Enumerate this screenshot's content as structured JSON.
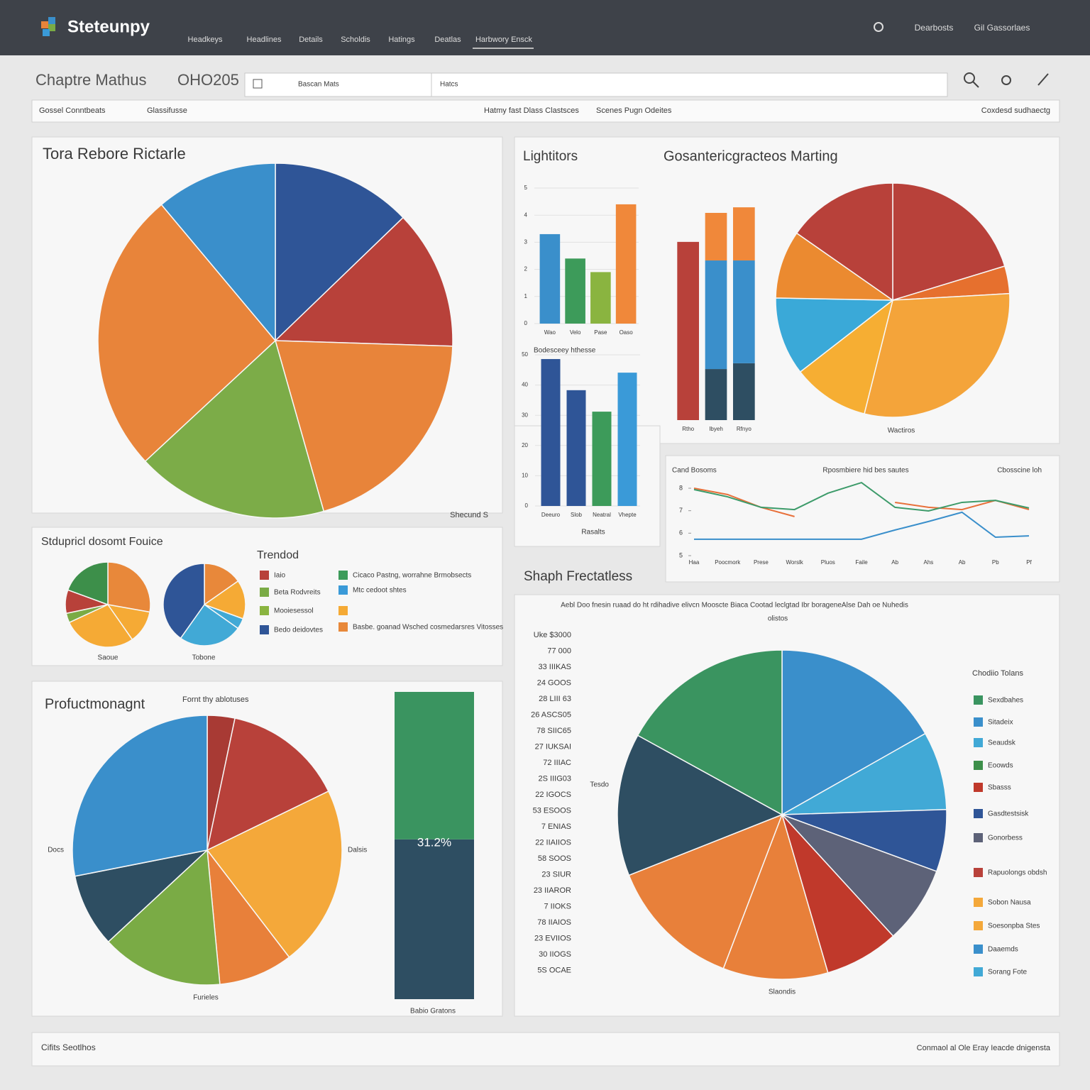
{
  "header": {
    "logo": "Steteunpy",
    "nav": [
      "Headkeys",
      "Headlines",
      "Details",
      "Scholdis",
      "Hatings",
      "Deatlas",
      "Harbwory Ensck"
    ],
    "links": [
      "Dearbosts",
      "Gil Gassorlaes"
    ]
  },
  "toolbar": {
    "title": "Chaptre Mathus",
    "code": "OHO205",
    "search": [
      "Bascan Mats",
      "Hatcs"
    ]
  },
  "filters": [
    "Gossel Conntbeats",
    "Glassifusse",
    "Hatmy fast Dlass Clastsces",
    "Scenes Pugn Odeites",
    "Coxdesd sudhaectg"
  ],
  "chart_data": [
    {
      "type": "pie",
      "title": "Tora Rebore Rictarle",
      "caption": "Shecund S",
      "values": [
        12.8,
        12.7,
        20.1,
        17.5,
        25.8,
        11.1
      ],
      "colors": [
        "#2f5597",
        "#b8413a",
        "#e8843a",
        "#7cac48",
        "#e8843a",
        "#3a8fcb"
      ]
    },
    {
      "type": "bar",
      "title": "Lightitors",
      "categories": [
        "Wao",
        "Velo",
        "Pase",
        "Oaso"
      ],
      "values": [
        3.3,
        2.4,
        1.9,
        4.4
      ],
      "colors": [
        "#3a8fcb",
        "#3d9b5a",
        "#8ab440",
        "#f0883a"
      ],
      "ylim": [
        0,
        5
      ],
      "yticks": [
        0,
        1,
        2,
        3,
        4,
        5
      ],
      "grid": true
    },
    {
      "type": "bar",
      "subtitle": "Bodesceey hthesse",
      "xlabel": "Rasalts",
      "categories": [
        "Deeuro",
        "Slob",
        "Neatral",
        "Vhepte"
      ],
      "values": [
        48.6,
        38.3,
        31.2,
        44.1
      ],
      "colors": [
        "#2f5597",
        "#2f5597",
        "#3d9b5a",
        "#3a9ad8"
      ],
      "ylim": [
        0,
        50
      ],
      "yticks": [
        0,
        10,
        20,
        30,
        40,
        50
      ],
      "grid": true
    },
    {
      "type": "bar",
      "title": "Gosantericgracteos Marting",
      "categories": [
        "Rtho",
        "Ibyeh",
        "Rfnyo"
      ],
      "ylim": [
        0,
        100
      ],
      "series": [
        {
          "color": "#b8413a",
          "values": [
            76.8,
            null,
            null
          ]
        },
        {
          "color": "#2e4e62",
          "values": [
            null,
            22,
            24.5
          ]
        },
        {
          "color": "#3a8fcb",
          "values": [
            null,
            46.8,
            44.3
          ]
        },
        {
          "color": "#f0883a",
          "values": [
            null,
            20.5,
            22.9
          ]
        }
      ]
    },
    {
      "type": "pie",
      "caption": "Wactiros",
      "values": [
        20.3,
        3.8,
        29.8,
        10.6,
        10.8,
        9.4,
        15.3
      ],
      "colors": [
        "#b8413a",
        "#e6702e",
        "#f4a43a",
        "#f6ae33",
        "#3aa9d8",
        "#eb8a30",
        "#b8413a"
      ]
    },
    {
      "type": "line",
      "annotations": [
        "Cand Bosoms",
        "Rposmbiere hid bes sautes",
        "Cbosscine loh"
      ],
      "categories": [
        "Haa",
        "Poocmork",
        "Prese",
        "Worslk",
        "Pluos",
        "Faile",
        "Ab",
        "Ahs",
        "Ab",
        "Pb",
        "Pf"
      ],
      "ylim": [
        5,
        8
      ],
      "yticks": [
        5,
        6,
        7,
        8
      ],
      "series": [
        {
          "color": "#e8703a",
          "values": [
            8.0,
            7.72,
            7.15,
            6.74,
            null,
            null,
            7.37,
            7.15,
            7.05,
            7.46,
            7.05
          ]
        },
        {
          "color": "#3d9b6a",
          "values": [
            7.94,
            7.62,
            7.15,
            7.05,
            7.78,
            8.25,
            7.15,
            6.99,
            7.37,
            7.46,
            7.12
          ]
        },
        {
          "color": "#3a8fcb",
          "values": [
            5.73,
            5.73,
            5.73,
            5.73,
            5.73,
            5.73,
            6.14,
            6.52,
            6.93,
            5.82,
            5.88
          ]
        }
      ]
    },
    {
      "type": "pie",
      "title": "Stdupricl dosomt Fouice",
      "caption": "Saoue",
      "values": [
        27.8,
        12.5,
        27.8,
        3.6,
        8.9,
        19.4
      ],
      "colors": [
        "#e8883a",
        "#f5aa35",
        "#f5aa35",
        "#7aab45",
        "#b8413a",
        "#3d8f4a"
      ]
    },
    {
      "type": "pie",
      "caption": "Tobone",
      "values": [
        15.3,
        15.3,
        4.2,
        25,
        40.2
      ],
      "colors": [
        "#e8883a",
        "#f5aa35",
        "#41a9d6",
        "#41a9d6",
        "#2f5597"
      ],
      "legend": {
        "title": "Trendod",
        "items": [
          {
            "name": "Iaio",
            "color": "#b8413a"
          },
          {
            "name": "Beta Rodvreits",
            "color": "#7aab45"
          },
          {
            "name": "Mooiesessol",
            "color": "#8ab440"
          },
          {
            "name": "Bedo deidovtes",
            "color": "#2f5597"
          },
          {
            "name": "Cicaco Pastng, worrahne Brmobsects",
            "color": "#3d9b5a"
          },
          {
            "name": "Mtc cedoot shtes",
            "color": "#3a9ad8"
          },
          {
            "color": "#f5aa35"
          },
          {
            "name": "Basbe. goanad Wsched cosmedarsres Vitosses",
            "color": "#e8883a"
          }
        ]
      }
    },
    {
      "type": "pie",
      "title": "Profuctmonagnt",
      "subtitle": "Fornt thy ablotuses",
      "caption": "Furieles",
      "annotations": [
        "Docs",
        "Dalsis"
      ],
      "values": [
        3.3,
        14.5,
        21.8,
        8.9,
        14.6,
        8.8,
        28.1
      ],
      "colors": [
        "#a83a34",
        "#b8413a",
        "#f4a83a",
        "#e8803a",
        "#7aab45",
        "#2e4e62",
        "#3a8fcb"
      ]
    },
    {
      "type": "bar",
      "caption": "Babio Gratons",
      "annotations": [
        "31.2%"
      ],
      "ylim": [
        0,
        100
      ],
      "series": [
        {
          "color": "#2e4e62",
          "values": [
            52
          ]
        },
        {
          "color": "#3a9460",
          "values": [
            48
          ]
        }
      ]
    },
    {
      "type": "pie",
      "title": "Shaph Frectatless",
      "subtitle": "Aebl Doo fnesin ruaad do ht rdihadive elivcn Mooscte Biaca Cootad leclgtad Ibr borageneAlse Dah oe Nuhedis",
      "annotations": [
        "olistos",
        "Tesdo"
      ],
      "caption": "Slaondis",
      "list": [
        "Uke $3000",
        "77 000",
        "33 IIIKAS",
        "24 GOOS",
        "28 LIII 63",
        "26 ASCS05",
        "78 SIIC65",
        "27 IUKSAI",
        "72 IIIAC",
        "2S IIIG03",
        "22 IGOCS",
        "53 ESOOS",
        "7 ENIAS",
        "22 IIAIIOS",
        "58 SOOS",
        "23 SIUR",
        "23 IIAROR",
        "7 IIOKS",
        "78 IIAIOS",
        "23 EVIIOS",
        "30 IIOGS",
        "5S OCAE"
      ],
      "values": [
        16.8,
        7.7,
        6.1,
        7.6,
        7.3,
        10.3,
        13.2,
        14.0,
        17.0
      ],
      "colors": [
        "#3a8fcb",
        "#41a9d6",
        "#2f5597",
        "#5d6278",
        "#c0392b",
        "#e8803a",
        "#e8803a",
        "#2e4e62",
        "#3a9460"
      ],
      "legend": {
        "title": "Chodiio Tolans",
        "items": [
          {
            "name": "Sexdbahes",
            "color": "#3a9460"
          },
          {
            "name": "Sitadeix",
            "color": "#3a8fcb"
          },
          {
            "name": "Seaudsk",
            "color": "#41a9d6"
          },
          {
            "name": "Eoowds",
            "color": "#3d8f4a"
          },
          {
            "name": "Sbasss",
            "color": "#c0392b"
          },
          {
            "name": "Gasdtestsisk",
            "color": "#2f5597"
          },
          {
            "name": "Gonorbess",
            "color": "#5d6278"
          },
          {
            "name": "Rapuolongs obdsh",
            "color": "#b8413a"
          },
          {
            "name": "Sobon Nausa",
            "color": "#f4a83a"
          },
          {
            "name": "Soesonpba Stes",
            "color": "#f4a83a"
          },
          {
            "name": "Daaemds",
            "color": "#3a8fcb"
          },
          {
            "name": "Sorang Fote",
            "color": "#41a9d6"
          }
        ]
      }
    }
  ],
  "footer": {
    "left": "Cifits Seotlhos",
    "right": "Conmaol al Ole Eray Ieacde dnigensta"
  }
}
